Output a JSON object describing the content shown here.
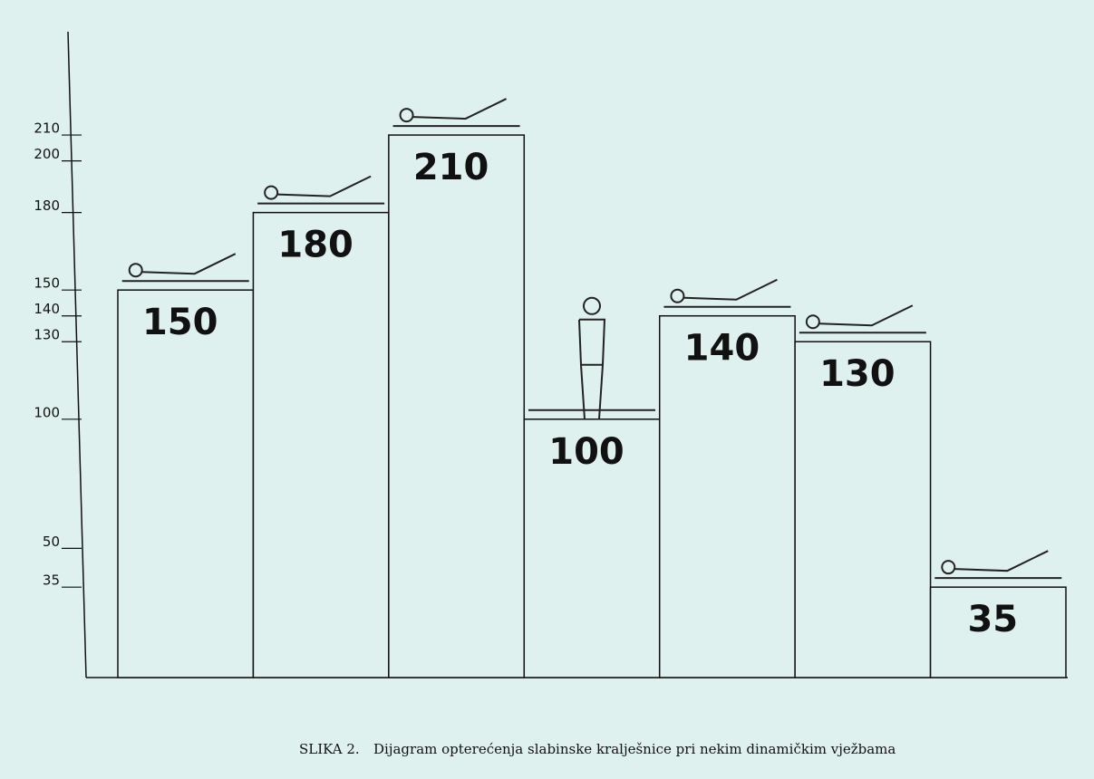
{
  "chart_data": {
    "type": "bar",
    "caption_label": "SLIKA 2.",
    "caption": "Dijagram opterećenja slabinske kralješnice pri nekim dinamičkim vježbama",
    "values": [
      150,
      180,
      210,
      100,
      140,
      130,
      35
    ],
    "ylim": [
      0,
      250
    ],
    "yticks": [
      35,
      50,
      100,
      130,
      140,
      150,
      180,
      200,
      210
    ],
    "color": "#dff1ee",
    "grid": false
  }
}
